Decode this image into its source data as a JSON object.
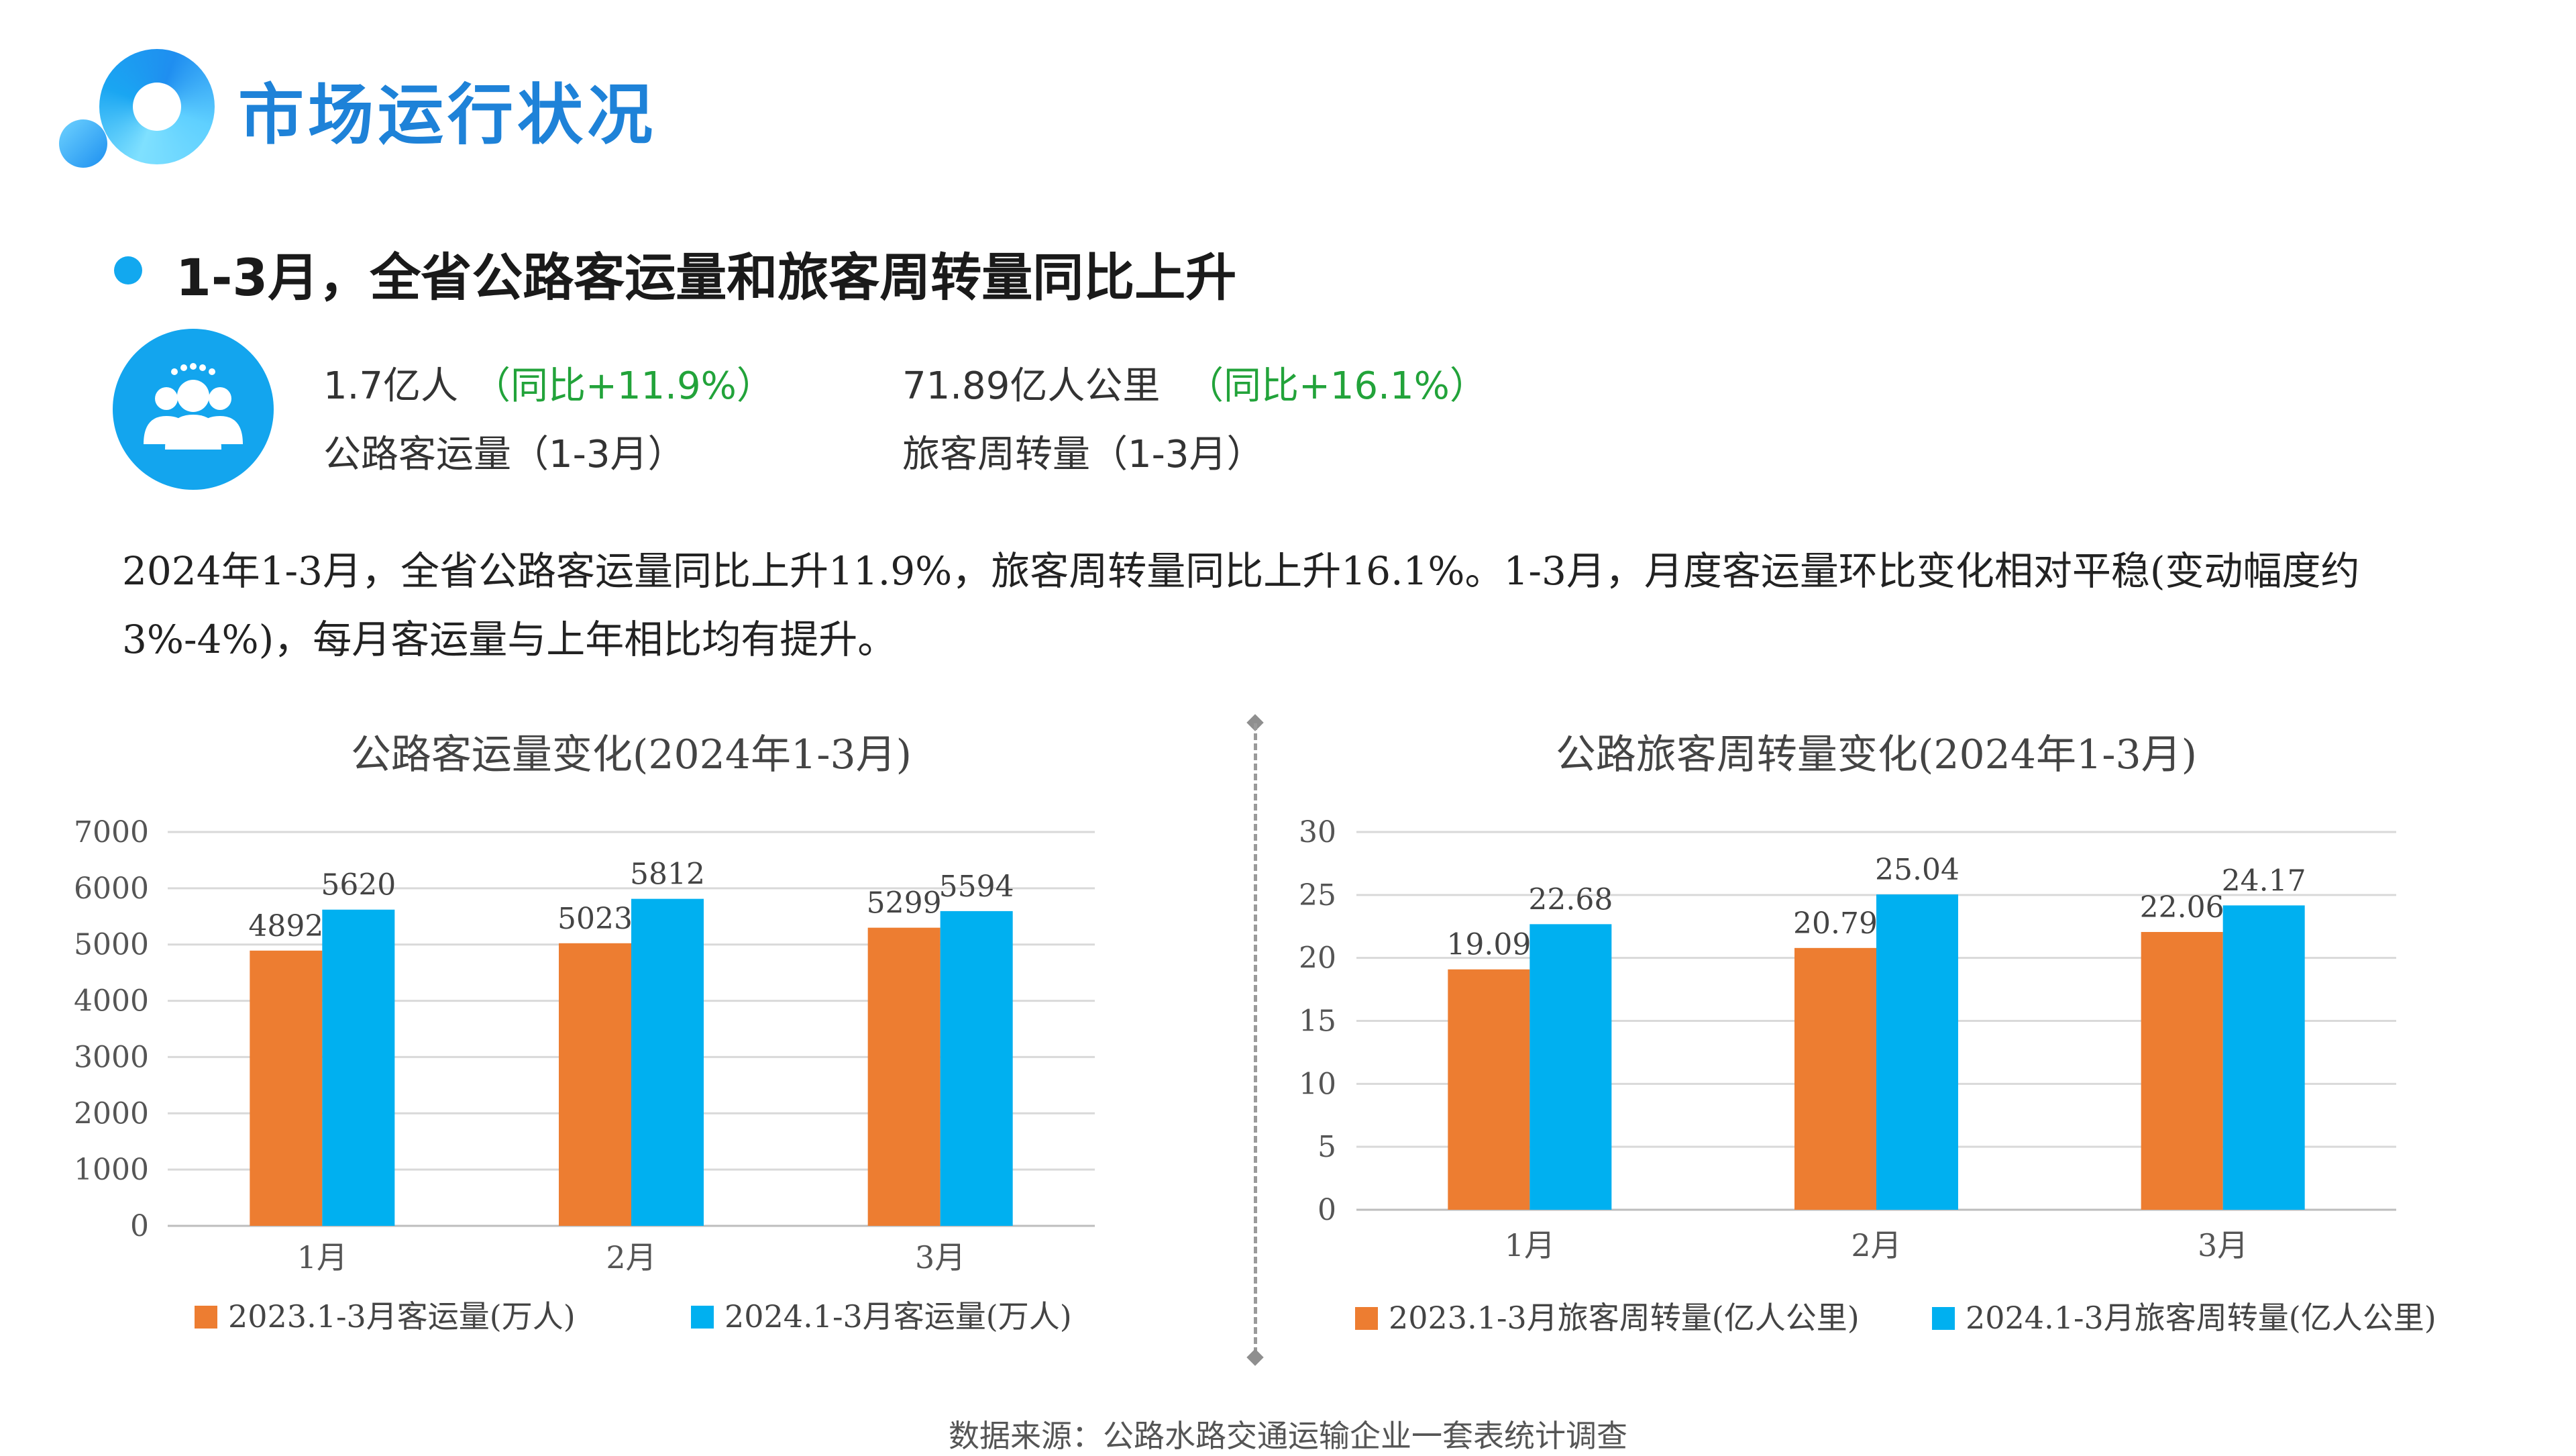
{
  "header": {
    "title": "市场运行状况"
  },
  "headline": "1-3月，全省公路客运量和旅客周转量同比上升",
  "kpis": [
    {
      "value": "1.7亿人",
      "change": "（同比+11.9%）",
      "label": "公路客运量（1-3月）"
    },
    {
      "value": "71.89亿人公里",
      "change": "（同比+16.1%）",
      "label": "旅客周转量（1-3月）"
    }
  ],
  "paragraph": "2024年1-3月，全省公路客运量同比上升11.9%，旅客周转量同比上升16.1%。1-3月，月度客运量环比变化相对平稳(变动幅度约3%-4%)，每月客运量与上年相比均有提升。",
  "colors": {
    "orange": "#ed7d31",
    "blue": "#00b0f0",
    "accent": "#12a8ef",
    "title": "#1e82d8",
    "green": "#22a33a"
  },
  "icons": {
    "logo": "logo-ring-icon",
    "kpi": "people-group-icon"
  },
  "chart_data": [
    {
      "type": "bar",
      "title": "公路客运量变化(2024年1-3月)",
      "categories": [
        "1月",
        "2月",
        "3月"
      ],
      "series": [
        {
          "name": "2023.1-3月客运量(万人)",
          "values": [
            4892,
            5023,
            5299
          ],
          "color": "#ed7d31"
        },
        {
          "name": "2024.1-3月客运量(万人)",
          "values": [
            5620,
            5812,
            5594
          ],
          "color": "#00b0f0"
        }
      ],
      "ylim": [
        0,
        7000
      ],
      "yticks": [
        0,
        1000,
        2000,
        3000,
        4000,
        5000,
        6000,
        7000
      ],
      "grid": true,
      "legend": "bottom"
    },
    {
      "type": "bar",
      "title": "公路旅客周转量变化(2024年1-3月)",
      "categories": [
        "1月",
        "2月",
        "3月"
      ],
      "series": [
        {
          "name": "2023.1-3月旅客周转量(亿人公里)",
          "values": [
            19.09,
            20.79,
            22.06
          ],
          "color": "#ed7d31"
        },
        {
          "name": "2024.1-3月旅客周转量(亿人公里)",
          "values": [
            22.68,
            25.04,
            24.17
          ],
          "color": "#00b0f0"
        }
      ],
      "ylim": [
        0,
        30
      ],
      "yticks": [
        0,
        5,
        10,
        15,
        20,
        25,
        30
      ],
      "grid": true,
      "legend": "bottom"
    }
  ],
  "footer": {
    "source": "数据来源：公路水路交通运输企业一套表统计调查"
  }
}
